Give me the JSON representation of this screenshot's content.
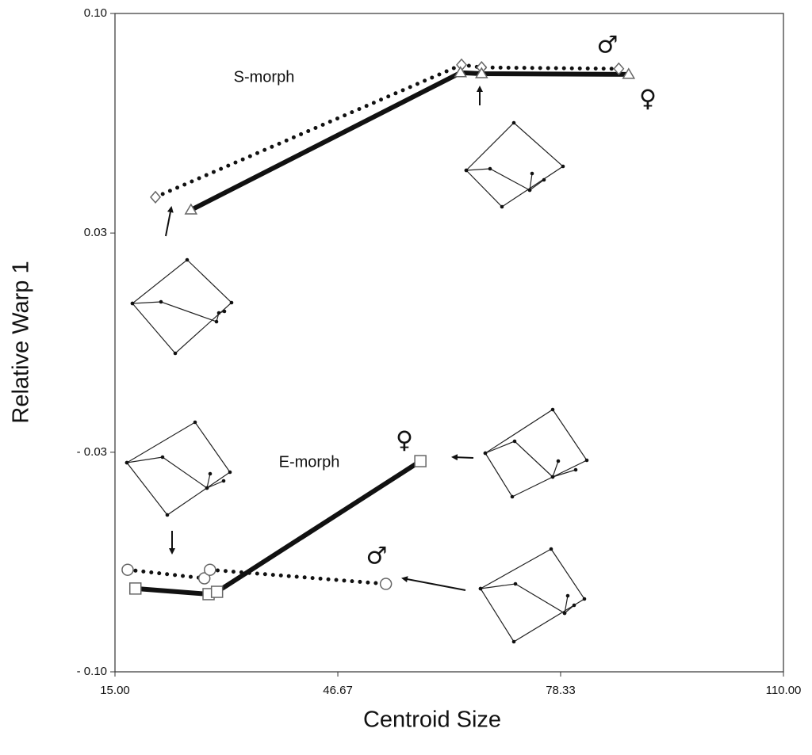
{
  "chart_data": {
    "type": "line",
    "x_label": "Centroid Size",
    "y_label": "Relative Warp 1",
    "xlim": [
      15,
      110
    ],
    "ylim": [
      -0.1,
      0.1
    ],
    "xticks": [
      {
        "value": 15,
        "label": "15.00"
      },
      {
        "value": 46.67,
        "label": "46.67"
      },
      {
        "value": 78.33,
        "label": "78.33"
      },
      {
        "value": 110,
        "label": "110.00"
      }
    ],
    "yticks": [
      {
        "value": 0.1,
        "label": "0.10"
      },
      {
        "value": 0.0333,
        "label": "0.03"
      },
      {
        "value": -0.0333,
        "label": "- 0.03"
      },
      {
        "value": -0.1,
        "label": "- 0.10"
      }
    ],
    "annotations": [
      "S-morph",
      "E-morph",
      "♂",
      "♀",
      "♀",
      "♂"
    ],
    "series": [
      {
        "color": "#111111",
        "line_style": "dotted",
        "marker": "diamond",
        "x": [
          20.75,
          64.25,
          67.1,
          86.6
        ],
        "values": [
          0.0442,
          0.0844,
          0.0836,
          0.0832
        ]
      },
      {
        "color": "#111111",
        "line_style": "solid",
        "marker": "triangle",
        "x": [
          25.8,
          64.1,
          67.1,
          88.0
        ],
        "values": [
          0.0403,
          0.082,
          0.0817,
          0.0815
        ]
      },
      {
        "color": "#111111",
        "line_style": "dotted",
        "marker": "circle",
        "x": [
          16.8,
          27.7,
          28.5,
          53.5
        ],
        "values": [
          -0.069,
          -0.0716,
          -0.069,
          -0.0733
        ]
      },
      {
        "color": "#111111",
        "line_style": "solid",
        "marker": "square",
        "x": [
          17.9,
          28.3,
          29.5,
          58.4
        ],
        "values": [
          -0.0747,
          -0.0764,
          -0.0757,
          -0.036
        ]
      }
    ]
  }
}
